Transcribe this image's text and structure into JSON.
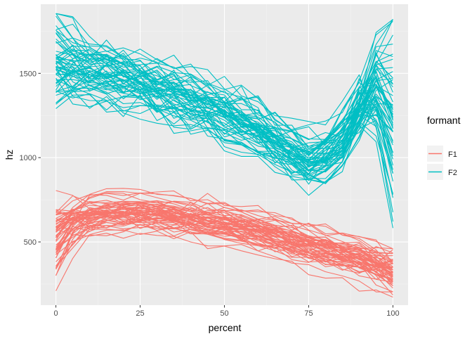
{
  "chart_data": {
    "type": "line",
    "title": "",
    "xlabel": "percent",
    "ylabel": "hz",
    "xlim": [
      -4.5,
      104.5
    ],
    "ylim": [
      125,
      1910
    ],
    "x_ticks": [
      0,
      25,
      50,
      75,
      100
    ],
    "x_tick_labels": [
      "0",
      "25",
      "50",
      "75",
      "100"
    ],
    "y_ticks": [
      500,
      1000,
      1500
    ],
    "y_tick_labels": [
      "500",
      "1000",
      "1500"
    ],
    "grid": true,
    "legend": {
      "title": "formant",
      "placement": "right",
      "entries": [
        {
          "label": "F1",
          "color": "#F8766D"
        },
        {
          "label": "F2",
          "color": "#00BFC4"
        }
      ]
    },
    "x": [
      0,
      5,
      10,
      15,
      20,
      25,
      30,
      35,
      40,
      45,
      50,
      55,
      60,
      65,
      70,
      75,
      80,
      85,
      90,
      95,
      100
    ],
    "series": [
      {
        "name": "F1",
        "color": "#F8766D",
        "n_lines": 60,
        "x_percent": [
          0,
          5,
          10,
          15,
          20,
          25,
          30,
          35,
          40,
          45,
          50,
          55,
          60,
          65,
          70,
          75,
          80,
          85,
          90,
          95,
          100
        ],
        "mean_hz": [
          520,
          610,
          650,
          665,
          670,
          670,
          660,
          645,
          630,
          615,
          600,
          580,
          555,
          530,
          500,
          470,
          445,
          420,
          395,
          360,
          320
        ],
        "start_range_hz": [
          210,
          805
        ],
        "end_range_hz": [
          150,
          460
        ]
      },
      {
        "name": "F2",
        "color": "#00BFC4",
        "n_lines": 60,
        "x_percent": [
          0,
          5,
          10,
          15,
          20,
          25,
          30,
          35,
          40,
          45,
          50,
          55,
          60,
          65,
          70,
          75,
          80,
          85,
          90,
          95,
          100
        ],
        "mean_hz": [
          1520,
          1510,
          1490,
          1470,
          1450,
          1420,
          1390,
          1360,
          1320,
          1280,
          1240,
          1190,
          1140,
          1080,
          1010,
          960,
          980,
          1080,
          1260,
          1420,
          1280
        ],
        "start_range_hz": [
          1185,
          1855
        ],
        "end_range_hz": [
          510,
          1820
        ]
      }
    ]
  }
}
